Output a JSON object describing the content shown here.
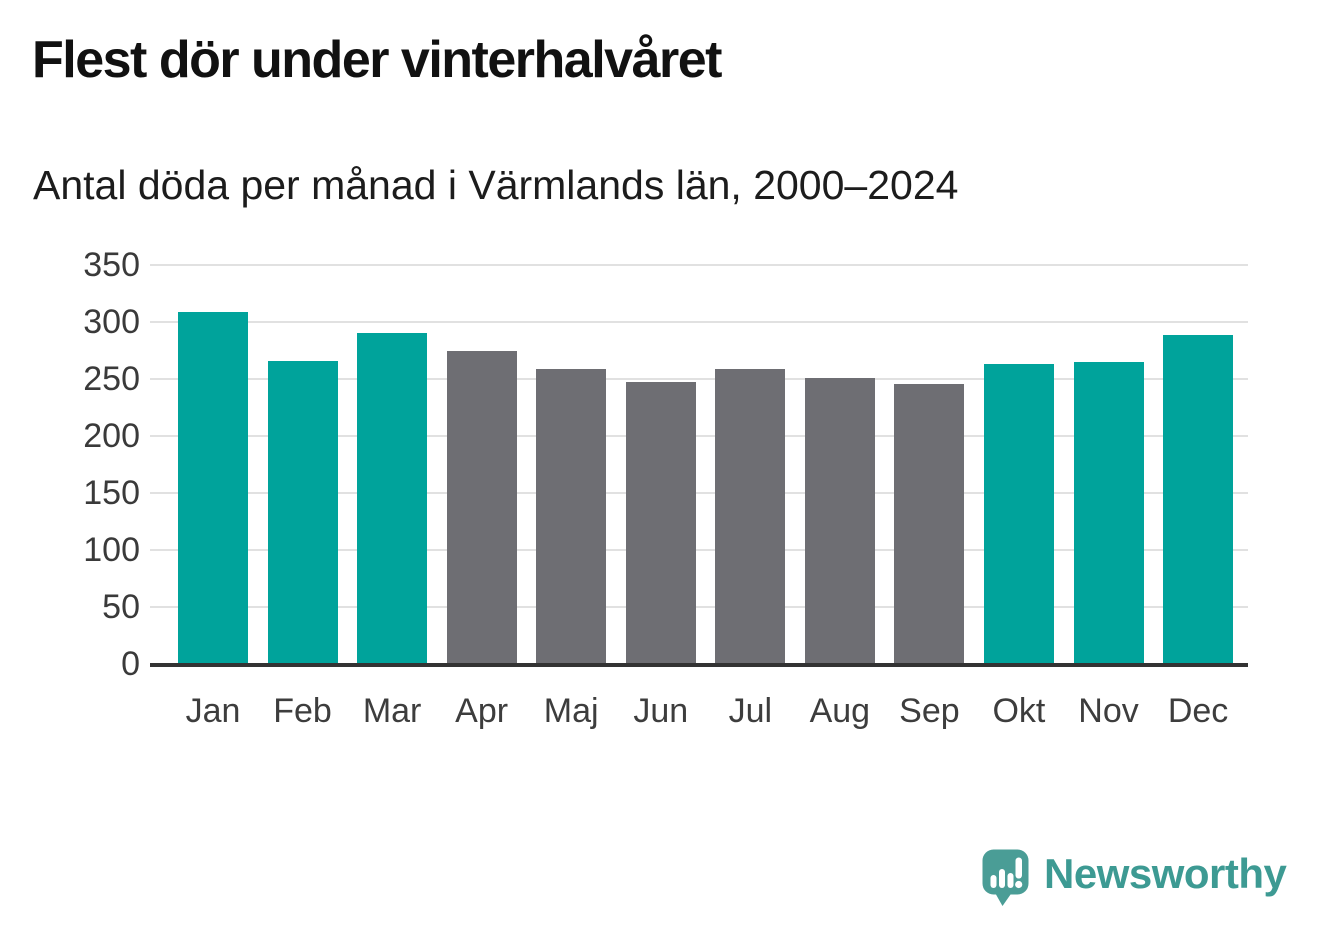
{
  "header": {
    "title": "Flest dör under vinterhalvåret",
    "subtitle": "Antal döda per månad i Värmlands län, 2000–2024"
  },
  "chart_data": {
    "type": "bar",
    "title": "Flest dör under vinterhalvåret",
    "subtitle": "Antal döda per månad i Värmlands län, 2000–2024",
    "categories": [
      "Jan",
      "Feb",
      "Mar",
      "Apr",
      "Maj",
      "Jun",
      "Jul",
      "Aug",
      "Sep",
      "Okt",
      "Nov",
      "Dec"
    ],
    "values": [
      309,
      266,
      290,
      275,
      259,
      247,
      259,
      251,
      246,
      263,
      265,
      289
    ],
    "bar_color_keys": [
      "teal",
      "teal",
      "teal",
      "gray",
      "gray",
      "gray",
      "gray",
      "gray",
      "gray",
      "teal",
      "teal",
      "teal"
    ],
    "colors": {
      "teal": "#00a39b",
      "gray": "#6e6e73",
      "axis_line": "#333333",
      "gridline": "#e1e1e1",
      "tick_text": "#3a3a3a"
    },
    "xlabel": "",
    "ylabel": "",
    "ylim": [
      0,
      350
    ],
    "yticks": [
      0,
      50,
      100,
      150,
      200,
      250,
      300,
      350
    ],
    "grid": "horizontal",
    "legend": "none"
  },
  "footer": {
    "brand": "Newsworthy",
    "brand_color": "#3d9a93",
    "brand_icon": "speech-bubble-bar-chart-exclamation",
    "brand_icon_color": "#4a9d96"
  }
}
